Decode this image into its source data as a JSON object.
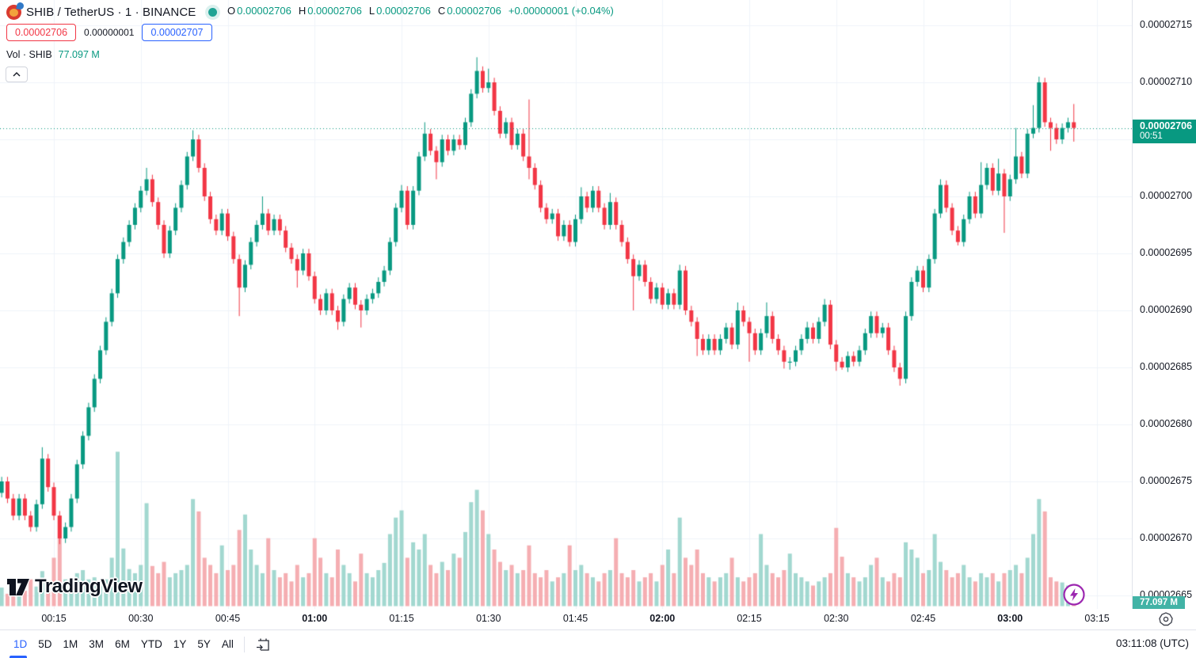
{
  "header": {
    "symbol_title": "SHIB / TetherUS · 1 · BINANCE",
    "ohlc": {
      "open_label": "O",
      "open": "0.00002706",
      "high_label": "H",
      "high": "0.00002706",
      "low_label": "L",
      "low": "0.00002706",
      "close_label": "C",
      "close": "0.00002706",
      "change": "+0.00000001 (+0.04%)"
    },
    "bid": "0.00002706",
    "spread": "0.00000001",
    "ask": "0.00002707",
    "volume_row": {
      "label": "Vol · SHIB",
      "value": "77.097 M"
    }
  },
  "axes": {
    "price_ticks": [
      {
        "label": "0.00002715",
        "value": 2715
      },
      {
        "label": "0.00002710",
        "value": 2710
      },
      {
        "label": "0.00002700",
        "value": 2700
      },
      {
        "label": "0.00002695",
        "value": 2695
      },
      {
        "label": "0.00002690",
        "value": 2690
      },
      {
        "label": "0.00002685",
        "value": 2685
      },
      {
        "label": "0.00002680",
        "value": 2680
      },
      {
        "label": "0.00002675",
        "value": 2675
      },
      {
        "label": "0.00002670",
        "value": 2670
      },
      {
        "label": "0.00002665",
        "value": 2665
      }
    ],
    "grid_prices": [
      2715,
      2710,
      2705,
      2700,
      2695,
      2690,
      2685,
      2680,
      2675,
      2670,
      2665
    ],
    "time_ticks": [
      {
        "label": "00:15",
        "minute": 15,
        "bold": false
      },
      {
        "label": "00:30",
        "minute": 30,
        "bold": false
      },
      {
        "label": "00:45",
        "minute": 45,
        "bold": false
      },
      {
        "label": "01:00",
        "minute": 60,
        "bold": true
      },
      {
        "label": "01:15",
        "minute": 75,
        "bold": false
      },
      {
        "label": "01:30",
        "minute": 90,
        "bold": false
      },
      {
        "label": "01:45",
        "minute": 105,
        "bold": false
      },
      {
        "label": "02:00",
        "minute": 120,
        "bold": true
      },
      {
        "label": "02:15",
        "minute": 135,
        "bold": false
      },
      {
        "label": "02:30",
        "minute": 150,
        "bold": false
      },
      {
        "label": "02:45",
        "minute": 165,
        "bold": false
      },
      {
        "label": "03:00",
        "minute": 180,
        "bold": true
      },
      {
        "label": "03:15",
        "minute": 195,
        "bold": false
      }
    ],
    "last_price_label": {
      "price": "0.00002706",
      "countdown": "00:51",
      "value": 2706
    },
    "volume_axis_label": {
      "text": "77.097 M"
    }
  },
  "toolbar": {
    "ranges": [
      "1D",
      "5D",
      "1M",
      "3M",
      "6M",
      "YTD",
      "1Y",
      "5Y",
      "All"
    ],
    "active_range": "1D",
    "clock": "03:11:08 (UTC)"
  },
  "watermark_text": "TradingView",
  "colors": {
    "up": "#089981",
    "down": "#f23645",
    "vol_up": "#a2d8d0",
    "vol_down": "#f5aeb2",
    "grid": "#f0f3fa",
    "text": "#131722",
    "blue": "#2962ff",
    "axis_border": "#e0e3eb",
    "price_line": "#089981",
    "price_label_bg": "#089981",
    "volume_label_bg": "#42b3a6",
    "purple": "#9c27b0"
  },
  "chart_data": {
    "type": "candlestick_with_volume",
    "symbol": "SHIB/TetherUS",
    "exchange": "BINANCE",
    "interval_minutes": 1,
    "start_time": "00:06",
    "end_time": "03:11",
    "price_unit_note": "prices stored as integers of 1e-8 USDT (2706 = 0.00002706)",
    "visible_price_range": [
      2663,
      2717
    ],
    "open_rule": "previous_close",
    "first_open": 2674,
    "default_wick_extension": 0.4,
    "closes": [
      2675,
      2673.5,
      2672,
      2673.5,
      2672,
      2671,
      2673,
      2677,
      2674.5,
      2672,
      2670,
      2671,
      2673.5,
      2676.5,
      2679,
      2681.5,
      2684,
      2686.5,
      2689,
      2691.5,
      2694.5,
      2696,
      2697.5,
      2699,
      2700.5,
      2701.5,
      2699.5,
      2697.5,
      2695,
      2697,
      2699,
      2701,
      2703.5,
      2705,
      2702.5,
      2700,
      2698,
      2697,
      2698.5,
      2696.5,
      2694.5,
      2692,
      2694,
      2696,
      2697.5,
      2698.5,
      2697,
      2698,
      2697,
      2695.5,
      2694.5,
      2693.5,
      2695,
      2693,
      2691,
      2690,
      2691.5,
      2690,
      2689,
      2691,
      2692,
      2690.5,
      2690,
      2691,
      2691.5,
      2692.5,
      2693.5,
      2696,
      2699,
      2700.5,
      2697.5,
      2700.5,
      2703.5,
      2705.5,
      2704,
      2703,
      2705,
      2704,
      2705,
      2704.5,
      2706.5,
      2709,
      2711,
      2709.5,
      2710,
      2707.5,
      2705.5,
      2706.5,
      2704.5,
      2705.5,
      2703.5,
      2702.5,
      2701,
      2699,
      2698,
      2698.5,
      2696.5,
      2697.5,
      2696,
      2698,
      2700,
      2699,
      2700.5,
      2699,
      2697.5,
      2699.5,
      2697.5,
      2696,
      2694.5,
      2693,
      2694,
      2692.5,
      2691,
      2692,
      2690.5,
      2691.5,
      2690.5,
      2693.5,
      2690,
      2689,
      2687.5,
      2686.5,
      2687.5,
      2686.5,
      2687.5,
      2688.5,
      2687,
      2690,
      2689,
      2688,
      2686.5,
      2688,
      2689.5,
      2687.5,
      2686.5,
      2685.5,
      2685.5,
      2686.5,
      2687.5,
      2688.5,
      2687.5,
      2689,
      2690.5,
      2687,
      2685.5,
      2685,
      2686,
      2685.5,
      2686.5,
      2688,
      2689.5,
      2688,
      2688.5,
      2686.5,
      2685,
      2684,
      2689.5,
      2692.5,
      2693.5,
      2692,
      2694.5,
      2698.5,
      2701,
      2699,
      2697,
      2696,
      2698,
      2700,
      2698.5,
      2701,
      2702.5,
      2700.5,
      2702,
      2700,
      2701.5,
      2703.5,
      2702,
      2705.5,
      2706,
      2710,
      2706.5,
      2706,
      2705,
      2706,
      2706.5,
      2706
    ],
    "wick_overrides": {
      "7": [
        2678,
        null
      ],
      "10": [
        null,
        2669.5
      ],
      "25": [
        2702.5,
        null
      ],
      "33": [
        2705.8,
        null
      ],
      "41": [
        null,
        2689.5
      ],
      "45": [
        2700,
        null
      ],
      "51": [
        null,
        2692
      ],
      "58": [
        null,
        2688.3
      ],
      "62": [
        null,
        2688.5
      ],
      "69": [
        2701,
        null
      ],
      "73": [
        2706.5,
        null
      ],
      "75": [
        null,
        2701.5
      ],
      "82": [
        2712.2,
        null
      ],
      "84": [
        2711.2,
        null
      ],
      "91": [
        2708.5,
        2701.5
      ],
      "100": [
        2700.8,
        null
      ],
      "105": [
        2700.3,
        null
      ],
      "109": [
        null,
        2690
      ],
      "117": [
        2694,
        null
      ],
      "120": [
        null,
        2686
      ],
      "127": [
        2690.7,
        null
      ],
      "129": [
        null,
        2685.5
      ],
      "132": [
        2690.7,
        null
      ],
      "135": [
        null,
        2684.9
      ],
      "136": [
        null,
        2684.8
      ],
      "139": [
        2689,
        null
      ],
      "142": [
        2691,
        null
      ],
      "144": [
        null,
        2684.7
      ],
      "145": [
        null,
        2684.8
      ],
      "155": [
        null,
        2683.4
      ],
      "162": [
        2701.5,
        null
      ],
      "165": [
        null,
        2695.7
      ],
      "169": [
        2703,
        null
      ],
      "172": [
        2703.3,
        null
      ],
      "173": [
        null,
        2696.8
      ],
      "175": [
        2706,
        null
      ],
      "178": [
        2708,
        null
      ],
      "179": [
        2710.5,
        null
      ],
      "181": [
        null,
        2704
      ],
      "185": [
        2708.1,
        2704.8
      ]
    },
    "volumes_millions": [
      180,
      120,
      230,
      110,
      150,
      260,
      190,
      340,
      200,
      470,
      880,
      260,
      200,
      320,
      350,
      260,
      280,
      230,
      260,
      470,
      1500,
      560,
      360,
      320,
      400,
      1000,
      390,
      320,
      430,
      280,
      320,
      350,
      400,
      1040,
      920,
      470,
      400,
      320,
      590,
      350,
      400,
      740,
      890,
      550,
      400,
      320,
      660,
      350,
      280,
      320,
      240,
      400,
      280,
      320,
      660,
      470,
      320,
      280,
      550,
      400,
      320,
      240,
      510,
      320,
      280,
      350,
      420,
      700,
      860,
      930,
      470,
      620,
      550,
      700,
      400,
      320,
      430,
      350,
      510,
      470,
      720,
      1010,
      1130,
      930,
      700,
      550,
      430,
      350,
      400,
      320,
      350,
      590,
      320,
      280,
      350,
      240,
      280,
      320,
      590,
      350,
      400,
      320,
      280,
      240,
      320,
      350,
      660,
      320,
      280,
      350,
      240,
      280,
      320,
      240,
      400,
      550,
      320,
      860,
      470,
      400,
      550,
      320,
      280,
      240,
      280,
      320,
      470,
      280,
      240,
      280,
      320,
      700,
      400,
      320,
      280,
      350,
      510,
      320,
      280,
      240,
      200,
      240,
      280,
      320,
      760,
      480,
      320,
      280,
      240,
      280,
      400,
      470,
      280,
      240,
      320,
      280,
      620,
      550,
      470,
      320,
      350,
      700,
      430,
      350,
      280,
      320,
      400,
      280,
      240,
      320,
      280,
      320,
      240,
      320,
      350,
      400,
      320,
      470,
      700,
      1040,
      920,
      280,
      240,
      230,
      200,
      77.097
    ],
    "current": {
      "price": 2706,
      "countdown": "00:51",
      "volume_m": 77.097
    }
  }
}
